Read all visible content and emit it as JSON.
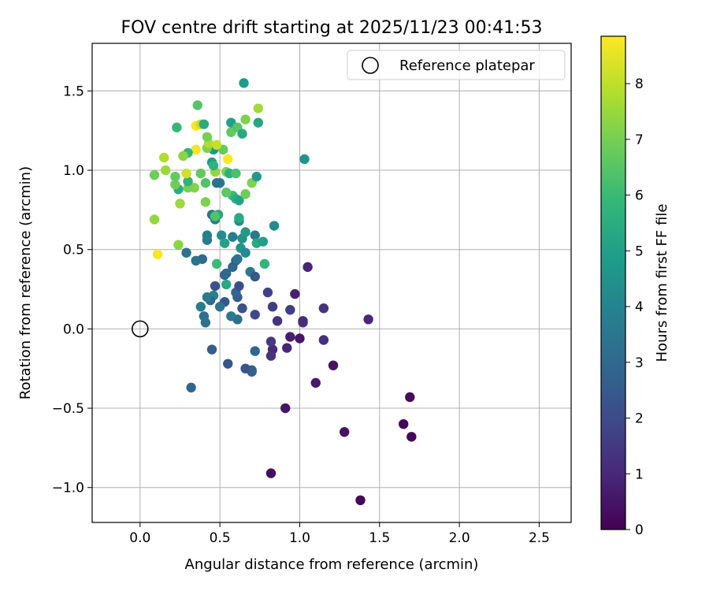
{
  "chart_data": {
    "type": "scatter",
    "title": "FOV centre drift starting at 2025/11/23 00:41:53",
    "xlabel": "Angular distance from reference (arcmin)",
    "ylabel": "Rotation from reference (arcmin)",
    "xlim": [
      -0.3,
      2.7
    ],
    "ylim": [
      -1.22,
      1.8
    ],
    "xticks": [
      0.0,
      0.5,
      1.0,
      1.5,
      2.0,
      2.5
    ],
    "xtick_labels": [
      "0.0",
      "0.5",
      "1.0",
      "1.5",
      "2.0",
      "2.5"
    ],
    "yticks": [
      -1.0,
      -0.5,
      0.0,
      0.5,
      1.0,
      1.5
    ],
    "ytick_labels": [
      "−1.0",
      "−0.5",
      "0.0",
      "0.5",
      "1.0",
      "1.5"
    ],
    "grid": true,
    "legend": {
      "label": "Reference platepar",
      "position": "top-right"
    },
    "reference_point": {
      "x": 0.0,
      "y": 0.0
    },
    "colorbar": {
      "label": "Hours from first FF file",
      "min": 0,
      "max": 8.85,
      "ticks": [
        0,
        1,
        2,
        3,
        4,
        5,
        6,
        7,
        8
      ],
      "tick_labels": [
        "0",
        "1",
        "2",
        "3",
        "4",
        "5",
        "6",
        "7",
        "8"
      ],
      "colormap": "viridis"
    },
    "points": [
      {
        "x": 1.38,
        "y": -1.08,
        "h": 0.15
      },
      {
        "x": 0.82,
        "y": -0.91,
        "h": 0.3
      },
      {
        "x": 1.65,
        "y": -0.6,
        "h": 0.2
      },
      {
        "x": 1.7,
        "y": -0.68,
        "h": 0.1
      },
      {
        "x": 1.69,
        "y": -0.43,
        "h": 0.25
      },
      {
        "x": 1.28,
        "y": -0.65,
        "h": 0.4
      },
      {
        "x": 0.91,
        "y": -0.5,
        "h": 0.5
      },
      {
        "x": 1.1,
        "y": -0.34,
        "h": 0.6
      },
      {
        "x": 1.21,
        "y": -0.23,
        "h": 0.45
      },
      {
        "x": 1.0,
        "y": -0.06,
        "h": 0.5
      },
      {
        "x": 0.94,
        "y": -0.05,
        "h": 0.7
      },
      {
        "x": 0.92,
        "y": -0.12,
        "h": 0.9
      },
      {
        "x": 0.83,
        "y": -0.13,
        "h": 1.1
      },
      {
        "x": 0.82,
        "y": -0.17,
        "h": 1.3
      },
      {
        "x": 0.82,
        "y": -0.08,
        "h": 1.5
      },
      {
        "x": 1.15,
        "y": -0.07,
        "h": 1.2
      },
      {
        "x": 1.43,
        "y": 0.06,
        "h": 1.0
      },
      {
        "x": 1.15,
        "y": 0.13,
        "h": 1.3
      },
      {
        "x": 1.02,
        "y": 0.04,
        "h": 1.4
      },
      {
        "x": 1.02,
        "y": 0.05,
        "h": 1.1
      },
      {
        "x": 0.97,
        "y": 0.22,
        "h": 0.8
      },
      {
        "x": 0.94,
        "y": 0.12,
        "h": 1.6
      },
      {
        "x": 0.86,
        "y": 0.05,
        "h": 1.3
      },
      {
        "x": 0.83,
        "y": 0.14,
        "h": 1.6
      },
      {
        "x": 0.8,
        "y": 0.23,
        "h": 1.7
      },
      {
        "x": 1.05,
        "y": 0.39,
        "h": 0.9
      },
      {
        "x": 0.72,
        "y": 0.09,
        "h": 1.9
      },
      {
        "x": 0.72,
        "y": -0.14,
        "h": 3.0
      },
      {
        "x": 0.7,
        "y": -0.27,
        "h": 2.5
      },
      {
        "x": 0.7,
        "y": -0.26,
        "h": 2.8
      },
      {
        "x": 0.66,
        "y": -0.25,
        "h": 2.3
      },
      {
        "x": 0.55,
        "y": -0.22,
        "h": 2.4
      },
      {
        "x": 0.45,
        "y": -0.13,
        "h": 2.6
      },
      {
        "x": 0.32,
        "y": -0.37,
        "h": 2.9
      },
      {
        "x": 0.64,
        "y": 0.13,
        "h": 2.2
      },
      {
        "x": 0.61,
        "y": 0.06,
        "h": 3.3
      },
      {
        "x": 0.57,
        "y": 0.08,
        "h": 3.6
      },
      {
        "x": 0.61,
        "y": 0.2,
        "h": 2.6
      },
      {
        "x": 0.6,
        "y": 0.23,
        "h": 2.9
      },
      {
        "x": 0.62,
        "y": 0.27,
        "h": 2.1
      },
      {
        "x": 0.53,
        "y": 0.17,
        "h": 2.4
      },
      {
        "x": 0.5,
        "y": 0.14,
        "h": 3.4
      },
      {
        "x": 0.47,
        "y": 0.27,
        "h": 2.2
      },
      {
        "x": 0.46,
        "y": 0.21,
        "h": 3.9
      },
      {
        "x": 0.44,
        "y": 0.18,
        "h": 2.9
      },
      {
        "x": 0.42,
        "y": 0.2,
        "h": 3.6
      },
      {
        "x": 0.4,
        "y": 0.08,
        "h": 3.2
      },
      {
        "x": 0.41,
        "y": 0.04,
        "h": 3.4
      },
      {
        "x": 0.38,
        "y": 0.14,
        "h": 3.8
      },
      {
        "x": 0.54,
        "y": 0.28,
        "h": 5.3
      },
      {
        "x": 0.53,
        "y": 0.34,
        "h": 2.7
      },
      {
        "x": 0.54,
        "y": 0.35,
        "h": 3.0
      },
      {
        "x": 0.58,
        "y": 0.39,
        "h": 2.9
      },
      {
        "x": 0.6,
        "y": 0.43,
        "h": 2.7
      },
      {
        "x": 0.61,
        "y": 0.44,
        "h": 3.4
      },
      {
        "x": 0.69,
        "y": 0.36,
        "h": 3.6
      },
      {
        "x": 0.72,
        "y": 0.33,
        "h": 2.5
      },
      {
        "x": 0.78,
        "y": 0.41,
        "h": 5.8
      },
      {
        "x": 0.48,
        "y": 0.41,
        "h": 6.0
      },
      {
        "x": 0.39,
        "y": 0.44,
        "h": 3.0
      },
      {
        "x": 0.35,
        "y": 0.43,
        "h": 3.4
      },
      {
        "x": 0.29,
        "y": 0.48,
        "h": 3.3
      },
      {
        "x": 0.58,
        "y": 0.58,
        "h": 3.8
      },
      {
        "x": 0.63,
        "y": 0.51,
        "h": 4.6
      },
      {
        "x": 0.66,
        "y": 0.48,
        "h": 4.2
      },
      {
        "x": 0.64,
        "y": 0.57,
        "h": 4.5
      },
      {
        "x": 0.66,
        "y": 0.61,
        "h": 4.7
      },
      {
        "x": 0.72,
        "y": 0.59,
        "h": 3.5
      },
      {
        "x": 0.73,
        "y": 0.54,
        "h": 5.4
      },
      {
        "x": 0.77,
        "y": 0.55,
        "h": 5.0
      },
      {
        "x": 0.84,
        "y": 0.65,
        "h": 4.3
      },
      {
        "x": 0.51,
        "y": 0.59,
        "h": 4.3
      },
      {
        "x": 0.53,
        "y": 0.54,
        "h": 5.1
      },
      {
        "x": 0.42,
        "y": 0.56,
        "h": 3.6
      },
      {
        "x": 0.42,
        "y": 0.59,
        "h": 3.9
      },
      {
        "x": 0.62,
        "y": 0.68,
        "h": 4.3
      },
      {
        "x": 0.62,
        "y": 0.7,
        "h": 5.4
      },
      {
        "x": 0.47,
        "y": 0.69,
        "h": 3.7
      },
      {
        "x": 0.45,
        "y": 0.72,
        "h": 3.6
      },
      {
        "x": 0.49,
        "y": 0.72,
        "h": 5.2
      },
      {
        "x": 0.47,
        "y": 0.71,
        "h": 6.4
      },
      {
        "x": 0.24,
        "y": 0.53,
        "h": 7.3
      },
      {
        "x": 0.11,
        "y": 0.47,
        "h": 8.8
      },
      {
        "x": 0.09,
        "y": 0.69,
        "h": 7.4
      },
      {
        "x": 0.25,
        "y": 0.79,
        "h": 7.5
      },
      {
        "x": 0.41,
        "y": 0.8,
        "h": 7.1
      },
      {
        "x": 0.58,
        "y": 0.84,
        "h": 6.0
      },
      {
        "x": 0.6,
        "y": 0.82,
        "h": 5.6
      },
      {
        "x": 0.62,
        "y": 0.81,
        "h": 5.1
      },
      {
        "x": 0.54,
        "y": 0.86,
        "h": 6.6
      },
      {
        "x": 0.66,
        "y": 0.85,
        "h": 6.9
      },
      {
        "x": 0.7,
        "y": 0.92,
        "h": 7.1
      },
      {
        "x": 0.73,
        "y": 0.96,
        "h": 4.8
      },
      {
        "x": 0.5,
        "y": 0.92,
        "h": 3.5
      },
      {
        "x": 0.48,
        "y": 0.92,
        "h": 3.3
      },
      {
        "x": 0.41,
        "y": 0.92,
        "h": 6.4
      },
      {
        "x": 0.38,
        "y": 0.98,
        "h": 6.7
      },
      {
        "x": 0.34,
        "y": 0.89,
        "h": 7.2
      },
      {
        "x": 0.3,
        "y": 0.89,
        "h": 7.0
      },
      {
        "x": 0.3,
        "y": 0.93,
        "h": 5.7
      },
      {
        "x": 0.24,
        "y": 0.88,
        "h": 5.5
      },
      {
        "x": 0.22,
        "y": 0.91,
        "h": 6.9
      },
      {
        "x": 0.22,
        "y": 0.96,
        "h": 6.7
      },
      {
        "x": 0.16,
        "y": 1.0,
        "h": 7.5
      },
      {
        "x": 0.09,
        "y": 0.97,
        "h": 6.9
      },
      {
        "x": 0.15,
        "y": 1.08,
        "h": 7.8
      },
      {
        "x": 0.29,
        "y": 0.98,
        "h": 8.2
      },
      {
        "x": 0.47,
        "y": 0.99,
        "h": 7.4
      },
      {
        "x": 0.54,
        "y": 0.99,
        "h": 7.1
      },
      {
        "x": 0.56,
        "y": 0.98,
        "h": 5.6
      },
      {
        "x": 0.6,
        "y": 0.98,
        "h": 6.3
      },
      {
        "x": 0.45,
        "y": 1.05,
        "h": 4.9
      },
      {
        "x": 0.46,
        "y": 1.03,
        "h": 5.7
      },
      {
        "x": 0.55,
        "y": 1.07,
        "h": 8.8
      },
      {
        "x": 0.52,
        "y": 1.13,
        "h": 6.7
      },
      {
        "x": 0.46,
        "y": 1.13,
        "h": 4.6
      },
      {
        "x": 0.42,
        "y": 1.14,
        "h": 7.1
      },
      {
        "x": 0.43,
        "y": 1.17,
        "h": 7.8
      },
      {
        "x": 0.48,
        "y": 1.16,
        "h": 8.1
      },
      {
        "x": 0.35,
        "y": 1.13,
        "h": 8.7
      },
      {
        "x": 0.3,
        "y": 1.11,
        "h": 5.8
      },
      {
        "x": 0.27,
        "y": 1.09,
        "h": 7.3
      },
      {
        "x": 0.23,
        "y": 1.27,
        "h": 5.9
      },
      {
        "x": 0.35,
        "y": 1.28,
        "h": 8.8
      },
      {
        "x": 0.38,
        "y": 1.29,
        "h": 8.1
      },
      {
        "x": 0.4,
        "y": 1.29,
        "h": 5.4
      },
      {
        "x": 0.42,
        "y": 1.21,
        "h": 7.0
      },
      {
        "x": 0.57,
        "y": 1.24,
        "h": 6.7
      },
      {
        "x": 0.57,
        "y": 1.3,
        "h": 5.0
      },
      {
        "x": 0.61,
        "y": 1.27,
        "h": 6.5
      },
      {
        "x": 0.64,
        "y": 1.23,
        "h": 5.3
      },
      {
        "x": 0.66,
        "y": 1.32,
        "h": 7.1
      },
      {
        "x": 0.74,
        "y": 1.3,
        "h": 5.2
      },
      {
        "x": 0.36,
        "y": 1.41,
        "h": 6.5
      },
      {
        "x": 0.74,
        "y": 1.39,
        "h": 7.6
      },
      {
        "x": 0.65,
        "y": 1.55,
        "h": 4.8
      },
      {
        "x": 1.03,
        "y": 1.07,
        "h": 4.6
      }
    ]
  }
}
